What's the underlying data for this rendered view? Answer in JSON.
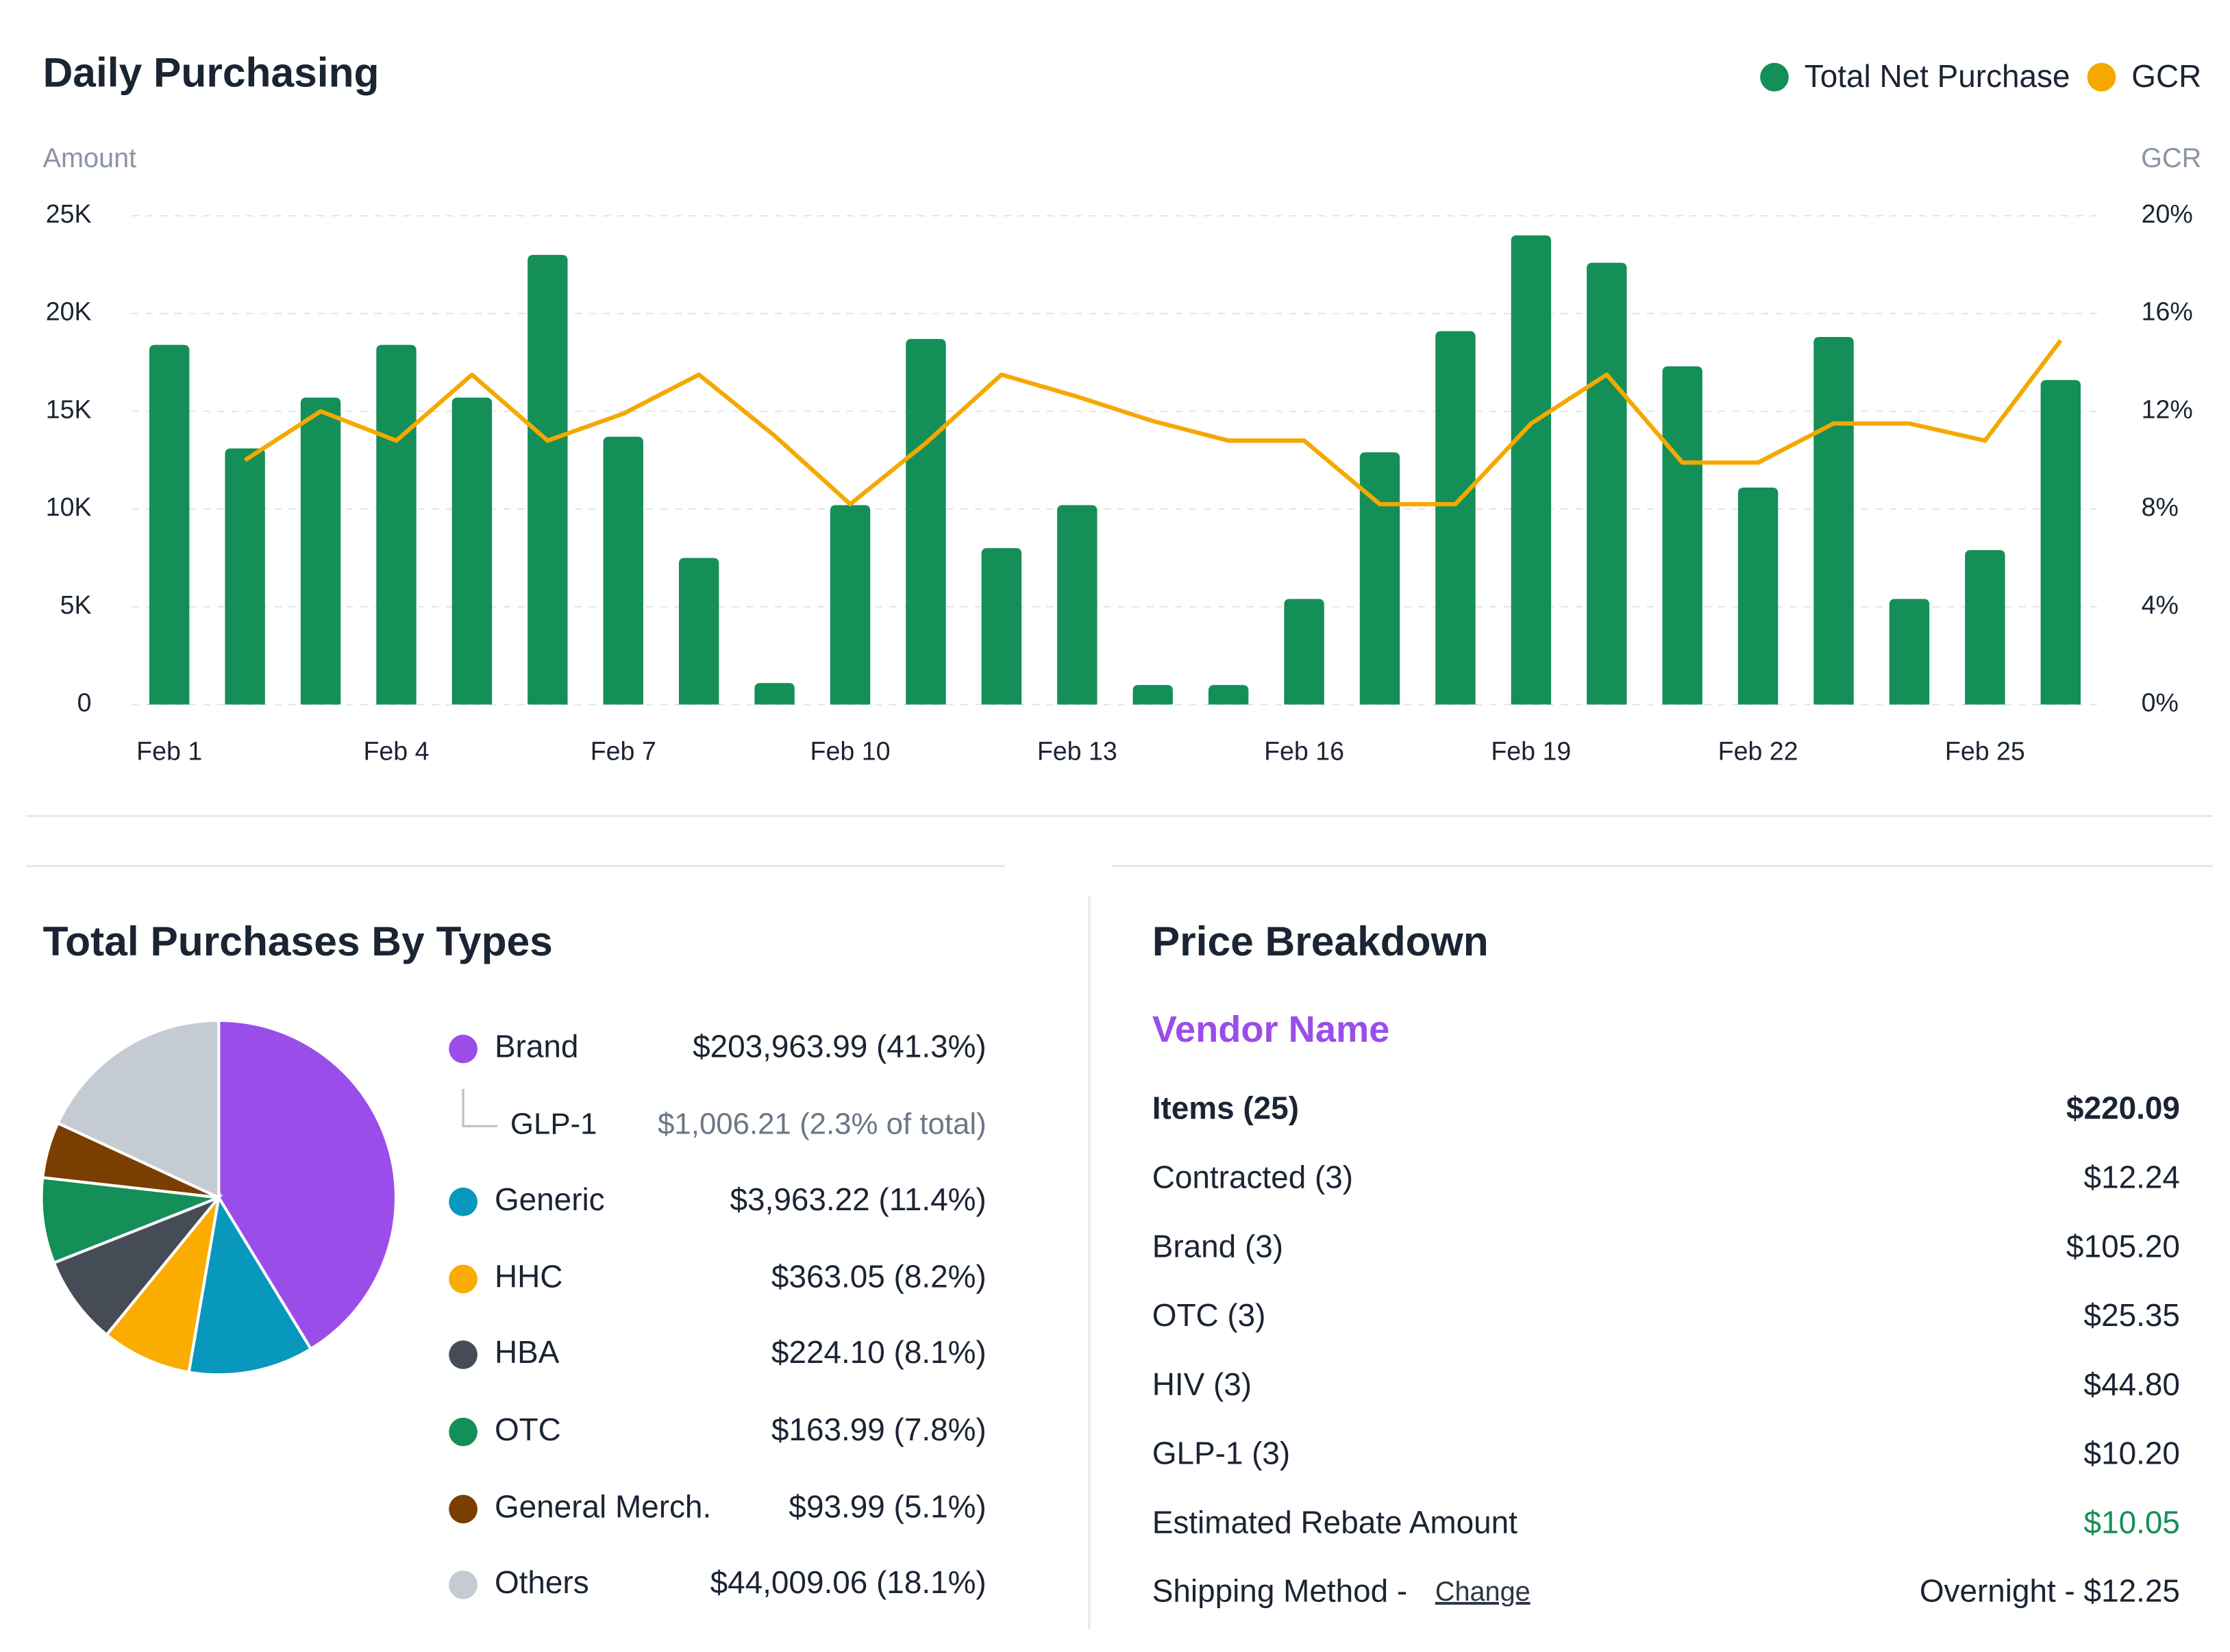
{
  "chart_data": [
    {
      "type": "bar-line",
      "title": "Daily Purchasing",
      "y_label": "Amount",
      "y2_label": "GCR",
      "categories": [
        "Feb 1",
        null,
        null,
        "Feb 4",
        null,
        null,
        "Feb 7",
        null,
        null,
        "Feb 10",
        null,
        null,
        "Feb 13",
        null,
        null,
        "Feb 16",
        null,
        null,
        "Feb 19",
        null,
        null,
        "Feb 22",
        null,
        null,
        "Feb 25",
        null
      ],
      "series": [
        {
          "name": "Total Net Purchase",
          "color": "#148f57",
          "type": "bar",
          "values": [
            18400,
            13100,
            15700,
            18400,
            15700,
            23000,
            13700,
            7500,
            1100,
            10200,
            18700,
            8000,
            10200,
            1000,
            1000,
            5400,
            12900,
            19100,
            24000,
            22600,
            17300,
            11100,
            18800,
            5400,
            7900,
            16600
          ]
        },
        {
          "name": "GCR",
          "color": "#f5a800",
          "type": "line",
          "axis": "y2",
          "values": [
            null,
            10,
            12,
            10.8,
            13.5,
            10.8,
            11.9,
            13.5,
            11,
            8.2,
            10.7,
            13.5,
            12.6,
            11.6,
            10.8,
            10.8,
            8.2,
            8.2,
            11.5,
            13.5,
            9.9,
            9.9,
            11.5,
            11.5,
            10.8,
            14.9
          ]
        }
      ],
      "ylim": [
        0,
        25000
      ],
      "yticks": [
        0,
        {
          "value": 5000,
          "label": "5K"
        },
        {
          "value": 10000,
          "label": "10K"
        },
        {
          "value": 15000,
          "label": "15K"
        },
        {
          "value": 20000,
          "label": "20K"
        },
        {
          "value": 25000,
          "label": "25K"
        }
      ],
      "y2lim": [
        0,
        20
      ],
      "y2ticks": [
        {
          "value": 0,
          "label": "0%"
        },
        {
          "value": 4,
          "label": "4%"
        },
        {
          "value": 8,
          "label": "8%"
        },
        {
          "value": 12,
          "label": "12%"
        },
        {
          "value": 16,
          "label": "16%"
        },
        {
          "value": 20,
          "label": "20%"
        }
      ],
      "grid": true,
      "legend": "top-right"
    },
    {
      "type": "pie",
      "title": "Total Purchases By Types",
      "categories": [
        "Brand",
        "Generic",
        "HHC",
        "HBA",
        "OTC",
        "General Merch.",
        "Others"
      ],
      "colors": [
        "#9b4dea",
        "#0898bd",
        "#fbac00",
        "#464c55",
        "#148f57",
        "#7a3e00",
        "#c5cbd3"
      ],
      "values": [
        41.3,
        11.4,
        8.2,
        8.1,
        7.8,
        5.1,
        18.1
      ],
      "value_labels": [
        "$203,963.99 (41.3%)",
        "$3,963.22 (11.4%)",
        "$363.05 (8.2%)",
        "$224.10 (8.1%)",
        "$163.99 (7.8%)",
        "$93.99 (5.1%)",
        "$44,009.06 (18.1%)"
      ],
      "sub_item": {
        "name": "GLP-1",
        "label": "$1,006.21 (2.3% of total)"
      }
    }
  ],
  "price_breakdown": {
    "title": "Price Breakdown",
    "vendor": "Vendor Name",
    "items": {
      "label": "Items (25)",
      "value": "$220.09"
    },
    "rows": [
      [
        "Contracted (3)",
        "$12.24"
      ],
      [
        "Brand (3)",
        "$105.20"
      ],
      [
        "OTC (3)",
        "$25.35"
      ],
      [
        "HIV (3)",
        "$44.80"
      ],
      [
        "GLP-1 (3)",
        "$10.20"
      ]
    ],
    "rebate": {
      "label": "Estimated Rebate Amount",
      "value": "$10.05"
    },
    "shipping": {
      "label": "Shipping Method -",
      "action": "Change",
      "value": "Overnight - $12.25"
    }
  }
}
